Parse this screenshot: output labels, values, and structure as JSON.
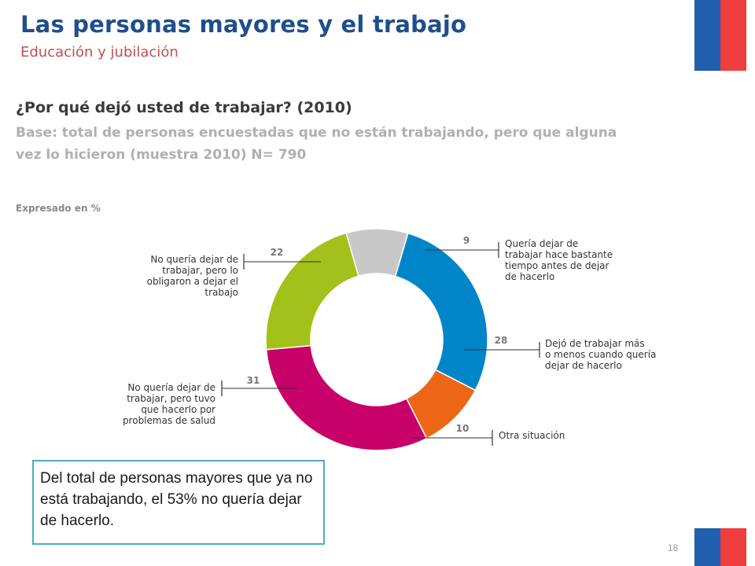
{
  "slide": {
    "title": "Las personas mayores y el trabajo",
    "subtitle": "Educación y jubilación",
    "page_number": "18"
  },
  "chart_heading": {
    "question": "¿Por qué dejó usted de trabajar? (2010)",
    "base_line1": "Base: total de personas encuestadas que no están trabajando, pero que alguna",
    "base_line2": "vez lo hicieron (muestra 2010) N= 790",
    "unit_note": "Expresado en %"
  },
  "chart_data": {
    "type": "pie",
    "donut": true,
    "series": [
      {
        "label_lines": [
          "Quería dejar de",
          "trabajar hace bastante",
          "tiempo antes de dejar",
          "de hacerlo"
        ],
        "value": 9,
        "color": "#c8c8c8"
      },
      {
        "label_lines": [
          "Dejó de trabajar más",
          "o menos cuando quería",
          "dejar de hacerlo"
        ],
        "value": 28,
        "color": "#0086c8"
      },
      {
        "label_lines": [
          "Otra situación"
        ],
        "value": 10,
        "color": "#ec6616"
      },
      {
        "label_lines": [
          "No quería dejar de",
          "trabajar, pero tuvo",
          "que hacerlo por",
          "problemas de salud"
        ],
        "value": 31,
        "color": "#c8006a"
      },
      {
        "label_lines": [
          "No quería dejar de",
          "trabajar, pero lo",
          "obligaron a dejar el",
          "trabajo"
        ],
        "value": 22,
        "color": "#a2c11b"
      }
    ]
  },
  "note": {
    "text": "Del total de personas mayores que ya no está trabajando, el 53% no quería dejar de hacerlo."
  }
}
